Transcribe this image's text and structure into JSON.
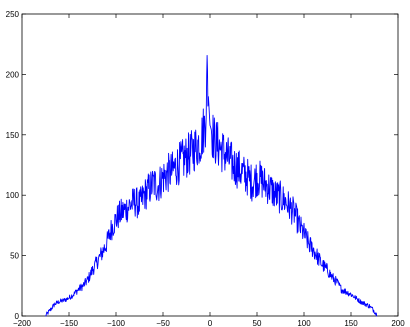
{
  "chart_data": {
    "type": "line",
    "title": "",
    "xlabel": "",
    "ylabel": "",
    "xlim": [
      -200,
      200
    ],
    "ylim": [
      0,
      250
    ],
    "grid": false,
    "x_ticks": [
      -200,
      -150,
      -100,
      -50,
      0,
      50,
      100,
      150,
      200
    ],
    "y_ticks": [
      0,
      50,
      100,
      150,
      200,
      250
    ],
    "series": [
      {
        "color": "#0000ff",
        "x": [
          -175,
          -170,
          -165,
          -160,
          -155,
          -150,
          -145,
          -140,
          -135,
          -130,
          -125,
          -120,
          -115,
          -110,
          -105,
          -100,
          -95,
          -90,
          -85,
          -80,
          -75,
          -70,
          -65,
          -60,
          -55,
          -50,
          -45,
          -40,
          -35,
          -30,
          -25,
          -20,
          -15,
          -10,
          -5,
          -3,
          0,
          3,
          5,
          10,
          15,
          20,
          25,
          30,
          35,
          40,
          45,
          50,
          55,
          60,
          65,
          70,
          75,
          80,
          85,
          90,
          95,
          100,
          105,
          110,
          115,
          120,
          125,
          130,
          135,
          140,
          145,
          150,
          155,
          160,
          165,
          170,
          175,
          178
        ],
        "y": [
          0,
          5,
          10,
          12,
          13,
          15,
          18,
          22,
          25,
          30,
          38,
          45,
          52,
          60,
          72,
          80,
          85,
          88,
          92,
          95,
          92,
          100,
          105,
          110,
          108,
          115,
          118,
          120,
          125,
          128,
          132,
          135,
          140,
          145,
          160,
          200,
          158,
          150,
          145,
          140,
          135,
          130,
          125,
          122,
          118,
          115,
          110,
          115,
          112,
          108,
          105,
          100,
          98,
          95,
          90,
          85,
          75,
          68,
          60,
          55,
          48,
          42,
          38,
          32,
          28,
          22,
          20,
          18,
          15,
          12,
          10,
          8,
          4,
          0
        ]
      }
    ]
  }
}
